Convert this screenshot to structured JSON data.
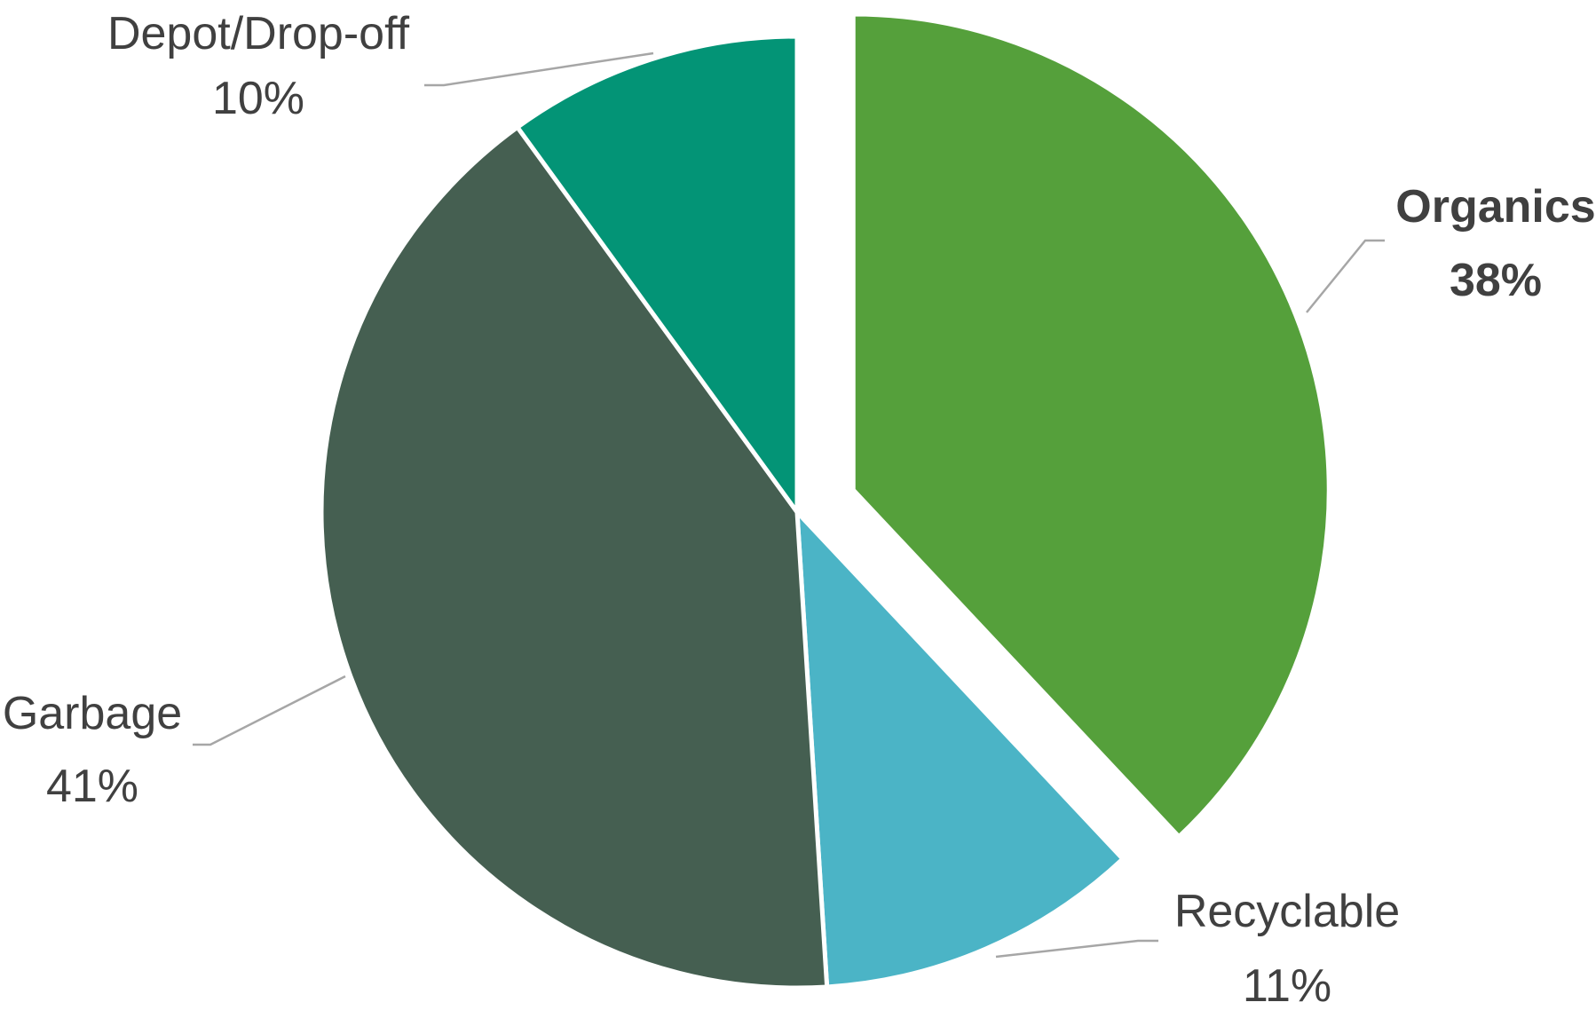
{
  "chart_data": {
    "type": "pie",
    "title": "",
    "start_angle_deg": 0,
    "direction": "clockwise",
    "legend": "none",
    "slices": [
      {
        "label": "Organics",
        "value": 38,
        "display": "38%",
        "color": "#55a03b",
        "exploded": true,
        "bold": true
      },
      {
        "label": "Recyclable",
        "value": 11,
        "display": "11%",
        "color": "#4bb4c6",
        "exploded": false,
        "bold": false
      },
      {
        "label": "Garbage",
        "value": 41,
        "display": "41%",
        "color": "#455f51",
        "exploded": false,
        "bold": false
      },
      {
        "label": "Depot/Drop-off",
        "value": 10,
        "display": "10%",
        "color": "#039476",
        "exploded": false,
        "bold": false
      }
    ]
  }
}
